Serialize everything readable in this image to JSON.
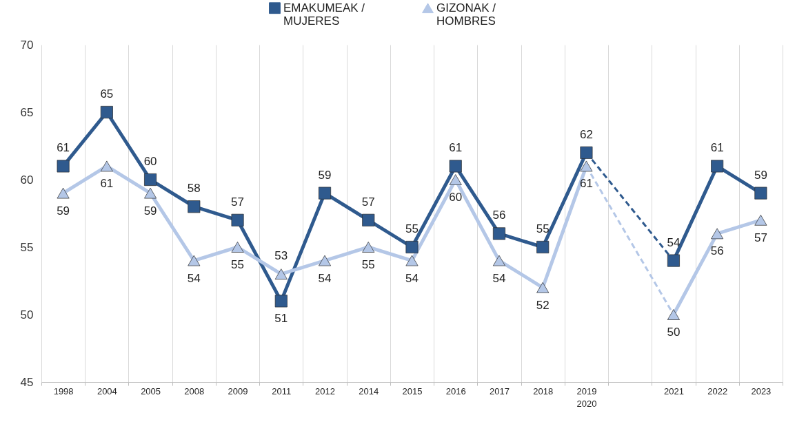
{
  "chart_data": {
    "type": "line",
    "categories": [
      "1998",
      "2004",
      "2005",
      "2008",
      "2009",
      "2011",
      "2012",
      "2014",
      "2015",
      "2016",
      "2017",
      "2018",
      "2019\n2020",
      null,
      "2021",
      "2022",
      "2023"
    ],
    "series": [
      {
        "name": "EMAKUMEAK /\nMUJERES",
        "color": "#2f5a8e",
        "marker": "square",
        "values": [
          61,
          65,
          60,
          58,
          57,
          51,
          59,
          57,
          55,
          61,
          56,
          55,
          62,
          null,
          54,
          61,
          59
        ]
      },
      {
        "name": "GIZONAK /\nHOMBRES",
        "color": "#b4c7e7",
        "marker": "triangle",
        "values": [
          59,
          61,
          59,
          54,
          55,
          53,
          54,
          55,
          54,
          60,
          54,
          52,
          61,
          null,
          50,
          56,
          57
        ]
      }
    ],
    "ylim": [
      45,
      70
    ],
    "yticks": [
      45,
      50,
      55,
      60,
      65,
      70
    ],
    "grid": "x",
    "legend": "top",
    "data_labels": true,
    "line_style": "solid"
  }
}
